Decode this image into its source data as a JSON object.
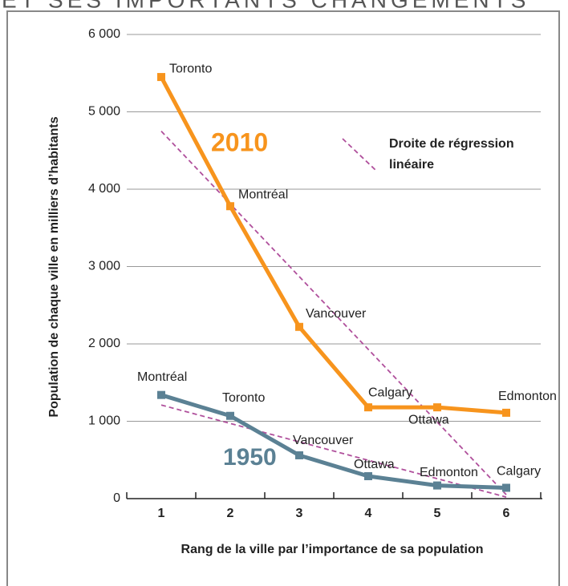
{
  "chart_data": {
    "type": "line",
    "title": "ET SES IMPORTANTS CHANGEMENTS",
    "x_label": "Rang de la ville par l’importance de sa population",
    "y_label": "Population de chaque ville en milliers d’habitants",
    "x": [
      1,
      2,
      3,
      4,
      5,
      6
    ],
    "xlim": [
      0.5,
      6.5
    ],
    "xticks": [
      1,
      2,
      3,
      4,
      5,
      6
    ],
    "ylim": [
      0,
      6000
    ],
    "yticks": [
      0,
      {
        "value": 1000,
        "label": "1 000"
      },
      {
        "value": 2000,
        "label": "2 000"
      },
      {
        "value": 3000,
        "label": "3 000"
      },
      {
        "value": 4000,
        "label": "4 000"
      },
      {
        "value": 5000,
        "label": "5 000"
      },
      {
        "value": 6000,
        "label": "6 000"
      }
    ],
    "grid": true,
    "series": [
      {
        "name": "2010",
        "color": "#f7941d",
        "values": [
          5450,
          3780,
          2220,
          1180,
          1180,
          1110
        ],
        "point_labels": [
          "Toronto",
          "Montréal",
          "Vancouver",
          "Calgary",
          "Ottawa",
          "Edmonton"
        ],
        "regression": [
          4750,
          50
        ]
      },
      {
        "name": "1950",
        "color": "#5b8194",
        "values": [
          1340,
          1070,
          560,
          290,
          170,
          140
        ],
        "point_labels": [
          "Montréal",
          "Toronto",
          "Vancouver",
          "Ottawa",
          "Edmonton",
          "Calgary"
        ],
        "regression": [
          1210,
          20
        ]
      }
    ],
    "regression_color": "#b0509c",
    "regression_label": [
      "Droite de régression",
      "linéaire"
    ]
  }
}
